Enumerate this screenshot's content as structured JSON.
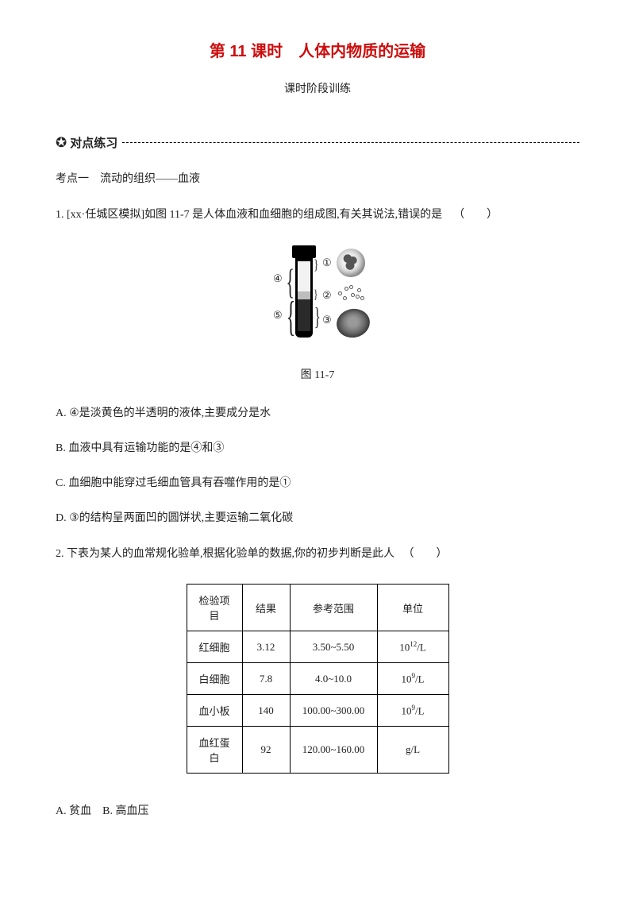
{
  "title": "第 11 课时　人体内物质的运输",
  "subtitle": "课时阶段训练",
  "section_bullet": "✪",
  "section_label": "对点练习",
  "topic1": "考点一　流动的组织——血液",
  "q1": {
    "text": "1. [xx·任城区模拟]如图 11-7 是人体血液和血细胞的组成图,有关其说法,错误的是",
    "paren": "（　　）",
    "fig_caption": "图 11-7",
    "labels": {
      "n1": "①",
      "n2": "②",
      "n3": "③",
      "n4": "④",
      "n5": "⑤"
    },
    "options": {
      "A": "A. ④是淡黄色的半透明的液体,主要成分是水",
      "B": "B. 血液中具有运输功能的是④和③",
      "C": "C. 血细胞中能穿过毛细血管具有吞噬作用的是①",
      "D": "D. ③的结构呈两面凹的圆饼状,主要运输二氧化碳"
    }
  },
  "q2": {
    "text": "2. 下表为某人的血常规化验单,根据化验单的数据,你的初步判断是此人",
    "paren": "（　　）",
    "table": {
      "headers": [
        "检验项目",
        "结果",
        "参考范围",
        "单位"
      ],
      "col_widths": [
        "70px",
        "60px",
        "110px",
        "90px"
      ],
      "rows": [
        {
          "item": "红细胞",
          "result": "3.12",
          "range": "3.50~5.50",
          "unit_base": "10",
          "unit_sup": "12",
          "unit_suffix": "/L"
        },
        {
          "item": "白细胞",
          "result": "7.8",
          "range": "4.0~10.0",
          "unit_base": "10",
          "unit_sup": "9",
          "unit_suffix": "/L"
        },
        {
          "item": "血小板",
          "result": "140",
          "range": "100.00~300.00",
          "unit_base": "10",
          "unit_sup": "9",
          "unit_suffix": "/L"
        },
        {
          "item": "血红蛋白",
          "result": "92",
          "range": "120.00~160.00",
          "unit_plain": "g/L"
        }
      ]
    },
    "options_line": "A. 贫血　B. 高血压"
  },
  "colors": {
    "title": "#cc0e0e",
    "text": "#222222",
    "border": "#000000",
    "background": "#ffffff"
  }
}
